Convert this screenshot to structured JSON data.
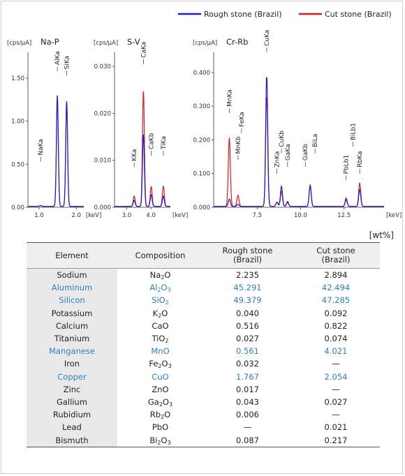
{
  "legend": [
    {
      "label": "Rough stone (Brazil)",
      "color": "#1a1adc"
    },
    {
      "label": "Cut stone (Brazil)",
      "color": "#e0181c"
    }
  ],
  "chart_data": [
    {
      "type": "line",
      "title": "Na-P",
      "ylabel": "[cps/μA]",
      "xlabel": "[keV]",
      "xlim": [
        0.7,
        2.2
      ],
      "ylim": [
        0,
        1.8
      ],
      "xticks": [
        1.0,
        2.0
      ],
      "xtick_labels": [
        "1.0",
        "2.0"
      ],
      "yticks": [
        0,
        0.5,
        1.0,
        1.5
      ],
      "ytick_labels": [
        "0.00",
        "0.50",
        "1.00",
        "1.50"
      ],
      "series": [
        {
          "name": "Rough stone (Brazil)",
          "peaks": [
            {
              "x": 1.04,
              "y": 0.01
            },
            {
              "x": 1.49,
              "y": 1.29
            },
            {
              "x": 1.74,
              "y": 1.22
            }
          ]
        },
        {
          "name": "Cut stone (Brazil)",
          "peaks": [
            {
              "x": 1.04,
              "y": 0.01
            },
            {
              "x": 1.49,
              "y": 1.25
            },
            {
              "x": 1.74,
              "y": 1.2
            }
          ]
        }
      ],
      "annotations": [
        {
          "label": "NaKa",
          "x": 1.04,
          "ytop": 0.53
        },
        {
          "label": "AlKa",
          "x": 1.49,
          "ytop": 1.58
        },
        {
          "label": "SiKa",
          "x": 1.74,
          "ytop": 1.53
        }
      ]
    },
    {
      "type": "line",
      "title": "S-V",
      "ylabel": "[cps/μA]",
      "xlabel": "[keV]",
      "xlim": [
        2.5,
        4.8
      ],
      "ylim": [
        0,
        0.033
      ],
      "xticks": [
        3.0,
        4.0
      ],
      "xtick_labels": [
        "3.0",
        "4.0"
      ],
      "yticks": [
        0,
        0.01,
        0.02,
        0.03
      ],
      "ytick_labels": [
        "0.000",
        "0.010",
        "0.020",
        "0.030"
      ],
      "series": [
        {
          "name": "Rough stone (Brazil)",
          "peaks": [
            {
              "x": 3.31,
              "y": 0.0013
            },
            {
              "x": 3.69,
              "y": 0.0153
            },
            {
              "x": 4.01,
              "y": 0.0025
            },
            {
              "x": 4.51,
              "y": 0.0022
            }
          ]
        },
        {
          "name": "Cut stone (Brazil)",
          "peaks": [
            {
              "x": 3.31,
              "y": 0.0022
            },
            {
              "x": 3.69,
              "y": 0.0245
            },
            {
              "x": 4.01,
              "y": 0.0042
            },
            {
              "x": 4.51,
              "y": 0.0043
            }
          ]
        }
      ],
      "annotations": [
        {
          "label": "KKa",
          "x": 3.31,
          "ytop": 0.0085
        },
        {
          "label": "CaKa",
          "x": 3.69,
          "ytop": 0.0305
        },
        {
          "label": "CaKb",
          "x": 4.01,
          "ytop": 0.011
        },
        {
          "label": "TiKa",
          "x": 4.51,
          "ytop": 0.011
        }
      ]
    },
    {
      "type": "line",
      "title": "Cr-Rb",
      "ylabel": "[cps/μA]",
      "xlabel": "[keV]",
      "xlim": [
        5.0,
        14.8
      ],
      "ylim": [
        0,
        0.46
      ],
      "xticks": [
        7.5,
        10.0,
        12.5
      ],
      "xtick_labels": [
        "7.5",
        "10.0",
        "12.5"
      ],
      "yticks": [
        0,
        0.1,
        0.2,
        0.3,
        0.4
      ],
      "ytick_labels": [
        "0.000",
        "0.100",
        "0.200",
        "0.300",
        "0.400"
      ],
      "series": [
        {
          "name": "Rough stone (Brazil)",
          "peaks": [
            {
              "x": 5.9,
              "y": 0.022
            },
            {
              "x": 6.4,
              "y": 0.006
            },
            {
              "x": 8.05,
              "y": 0.39
            },
            {
              "x": 8.64,
              "y": 0.012
            },
            {
              "x": 8.9,
              "y": 0.06
            },
            {
              "x": 9.25,
              "y": 0.012
            },
            {
              "x": 10.55,
              "y": 0.06
            },
            {
              "x": 12.62,
              "y": 0.02
            },
            {
              "x": 13.4,
              "y": 0.05
            }
          ]
        },
        {
          "name": "Cut stone (Brazil)",
          "peaks": [
            {
              "x": 5.9,
              "y": 0.205
            },
            {
              "x": 6.4,
              "y": 0.033
            },
            {
              "x": 8.05,
              "y": 0.33
            },
            {
              "x": 8.64,
              "y": 0.013
            },
            {
              "x": 8.9,
              "y": 0.045
            },
            {
              "x": 9.25,
              "y": 0.015
            },
            {
              "x": 10.55,
              "y": 0.065
            },
            {
              "x": 12.62,
              "y": 0.025
            },
            {
              "x": 13.4,
              "y": 0.07
            }
          ]
        }
      ],
      "annotations": [
        {
          "label": "MnKa",
          "x": 5.9,
          "ytop": 0.28
        },
        {
          "label": "MnKb",
          "x": 6.4,
          "ytop": 0.14
        },
        {
          "label": "FeKa",
          "x": 6.6,
          "ytop": 0.22
        },
        {
          "label": "CuKa",
          "x": 8.05,
          "ytop": 0.46
        },
        {
          "label": "ZnKa",
          "x": 8.64,
          "ytop": 0.1
        },
        {
          "label": "CuKb",
          "x": 8.9,
          "ytop": 0.16
        },
        {
          "label": "GaKa",
          "x": 9.25,
          "ytop": 0.12
        },
        {
          "label": "GaKb",
          "x": 10.27,
          "ytop": 0.12
        },
        {
          "label": "BiLa",
          "x": 10.83,
          "ytop": 0.16
        },
        {
          "label": "PbLb1",
          "x": 12.62,
          "ytop": 0.08
        },
        {
          "label": "BiLb1",
          "x": 13.02,
          "ytop": 0.18
        },
        {
          "label": "RbKa",
          "x": 13.4,
          "ytop": 0.1
        }
      ]
    }
  ],
  "table": {
    "unit": "[wt%]",
    "headers": {
      "element": "Element",
      "composition": "Composition",
      "rough_line1": "Rough stone",
      "rough_line2": "(Brazil)",
      "cut_line1": "Cut stone",
      "cut_line2": "(Brazil)"
    },
    "rows": [
      {
        "element": "Sodium",
        "comp": "Na",
        "sub1": "2",
        "comp2": "O",
        "sub2": "",
        "rough": "2.235",
        "cut": "2.894",
        "hl": false
      },
      {
        "element": "Aluminum",
        "comp": "Al",
        "sub1": "2",
        "comp2": "O",
        "sub2": "3",
        "rough": "45.291",
        "cut": "42.494",
        "hl": true
      },
      {
        "element": "Silicon",
        "comp": "SiO",
        "sub1": "2",
        "comp2": "",
        "sub2": "",
        "rough": "49.379",
        "cut": "47.285",
        "hl": true
      },
      {
        "element": "Potassium",
        "comp": "K",
        "sub1": "2",
        "comp2": "O",
        "sub2": "",
        "rough": "0.040",
        "cut": "0.092",
        "hl": false
      },
      {
        "element": "Calcium",
        "comp": "CaO",
        "sub1": "",
        "comp2": "",
        "sub2": "",
        "rough": "0.516",
        "cut": "0.822",
        "hl": false
      },
      {
        "element": "Titanium",
        "comp": "TiO",
        "sub1": "2",
        "comp2": "",
        "sub2": "",
        "rough": "0.027",
        "cut": "0.074",
        "hl": false
      },
      {
        "element": "Manganese",
        "comp": "MnO",
        "sub1": "",
        "comp2": "",
        "sub2": "",
        "rough": "0.561",
        "cut": "4.021",
        "hl": true
      },
      {
        "element": "Iron",
        "comp": "Fe",
        "sub1": "2",
        "comp2": "O",
        "sub2": "3",
        "rough": "0.032",
        "cut": "—",
        "hl": false
      },
      {
        "element": "Copper",
        "comp": "CuO",
        "sub1": "",
        "comp2": "",
        "sub2": "",
        "rough": "1.767",
        "cut": "2.054",
        "hl": true
      },
      {
        "element": "Zinc",
        "comp": "ZnO",
        "sub1": "",
        "comp2": "",
        "sub2": "",
        "rough": "0.017",
        "cut": "—",
        "hl": false
      },
      {
        "element": "Gallium",
        "comp": "Ga",
        "sub1": "2",
        "comp2": "O",
        "sub2": "3",
        "rough": "0.043",
        "cut": "0.027",
        "hl": false
      },
      {
        "element": "Rubidium",
        "comp": "Rb",
        "sub1": "2",
        "comp2": "O",
        "sub2": "",
        "rough": "0.006",
        "cut": "—",
        "hl": false
      },
      {
        "element": "Lead",
        "comp": "PbO",
        "sub1": "",
        "comp2": "",
        "sub2": "",
        "rough": "—",
        "cut": "0.021",
        "hl": false
      },
      {
        "element": "Bismuth",
        "comp": "Bi",
        "sub1": "2",
        "comp2": "O",
        "sub2": "3",
        "rough": "0.087",
        "cut": "0.217",
        "hl": false
      }
    ]
  }
}
